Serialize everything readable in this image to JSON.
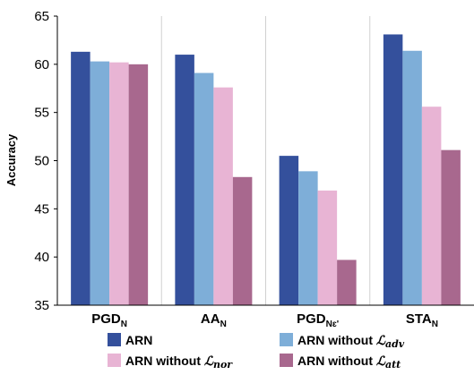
{
  "chart_data": {
    "type": "bar",
    "title": "",
    "xlabel": "",
    "ylabel": "Accuracy",
    "ylim": [
      35,
      65
    ],
    "yticks": [
      35,
      40,
      45,
      50,
      55,
      60,
      65
    ],
    "grid": "vertical category separators",
    "legend_position": "bottom",
    "categories": [
      {
        "main": "PGD",
        "sub": "N"
      },
      {
        "main": "AA",
        "sub": "N"
      },
      {
        "main": "PGD",
        "sub": "Nɛ'"
      },
      {
        "main": "STA",
        "sub": "N"
      }
    ],
    "series": [
      {
        "name": "ARN",
        "name_math": "",
        "name_sub": "",
        "color": "#34509c",
        "values": [
          61.3,
          61.0,
          50.5,
          63.1
        ]
      },
      {
        "name": "ARN without ",
        "name_math": "ℒ",
        "name_sub": "adv",
        "color": "#7eaed8",
        "values": [
          60.3,
          59.1,
          48.9,
          61.4
        ]
      },
      {
        "name": "ARN without ",
        "name_math": "ℒ",
        "name_sub": "nor",
        "color": "#e8b4d4",
        "values": [
          60.2,
          57.6,
          46.9,
          55.6
        ]
      },
      {
        "name": "ARN without ",
        "name_math": "ℒ",
        "name_sub": "att",
        "color": "#a8688e",
        "values": [
          60.0,
          48.3,
          39.7,
          51.1
        ]
      }
    ]
  }
}
